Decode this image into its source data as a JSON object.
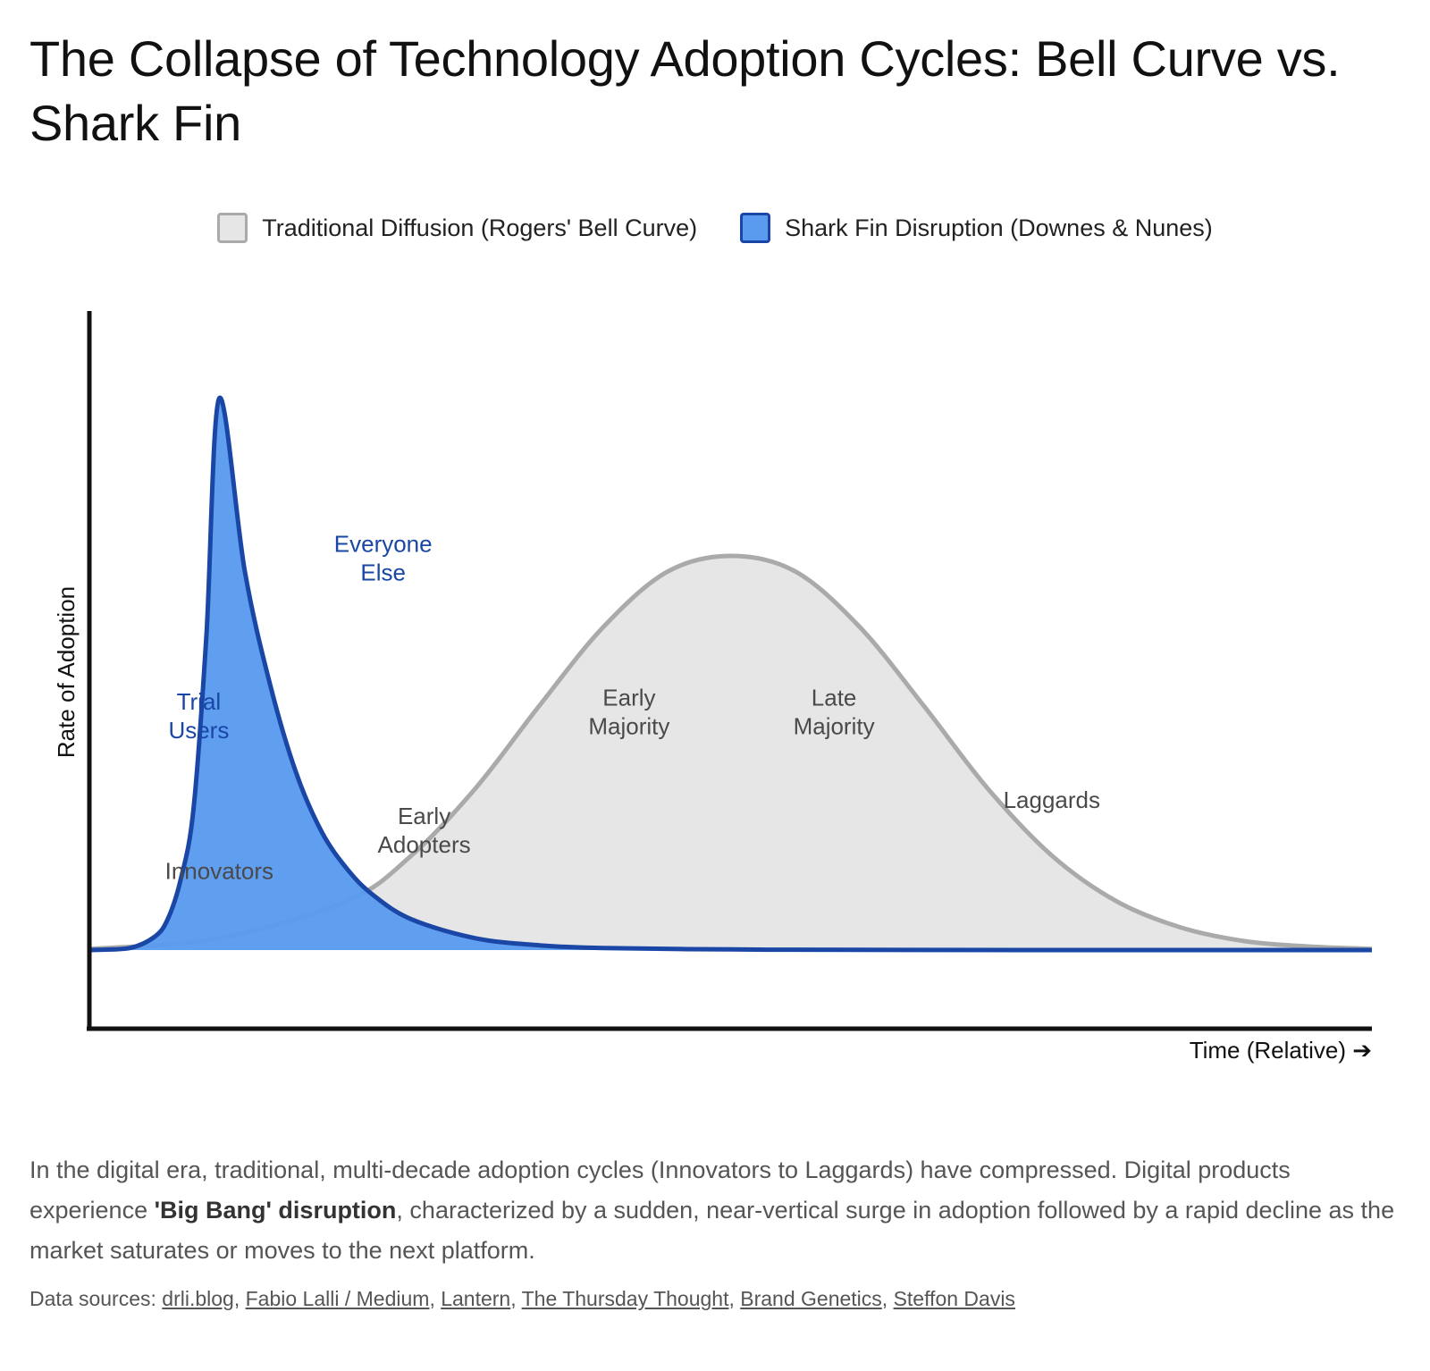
{
  "title": "The Collapse of Technology Adoption Cycles: Bell Curve vs. Shark Fin",
  "legend": [
    {
      "label": "Traditional Diffusion (Rogers' Bell Curve)",
      "color": "#e6e6e6",
      "border": "#aaaaaa"
    },
    {
      "label": "Shark Fin Disruption (Downes & Nunes)",
      "color": "#5b9bef",
      "border": "#1a47a6"
    }
  ],
  "chart_data": {
    "type": "area",
    "xlabel": "Time (Relative) ➔",
    "ylabel": "Rate of Adoption",
    "xlim": [
      0,
      100
    ],
    "ylim": [
      0,
      100
    ],
    "grid": false,
    "legend_position": "top",
    "series": [
      {
        "name": "Traditional Diffusion (Rogers' Bell Curve)",
        "color": "#aaaaaa",
        "fill": "#e6e6e6",
        "x": [
          0,
          10,
          20,
          25,
          30,
          35,
          40,
          45,
          50,
          55,
          60,
          65,
          70,
          75,
          80,
          85,
          90,
          95,
          100
        ],
        "y": [
          0.3,
          3.0,
          12.5,
          24.0,
          41.0,
          62.0,
          82.0,
          96.0,
          100.0,
          96.0,
          82.0,
          62.0,
          41.0,
          24.0,
          12.5,
          5.8,
          2.3,
          0.9,
          0.3
        ]
      },
      {
        "name": "Shark Fin Disruption (Downes & Nunes)",
        "color": "#1a47a6",
        "fill": "#5b9bef",
        "x": [
          0,
          3,
          5,
          6,
          7,
          8,
          9,
          10,
          12,
          14,
          16,
          18,
          20,
          22,
          25,
          30,
          35,
          40,
          50,
          60,
          80,
          100
        ],
        "y": [
          0,
          0.5,
          3.5,
          8.0,
          18.0,
          36.0,
          80.0,
          140.0,
          96.0,
          67.0,
          45.0,
          30.0,
          20.5,
          14.0,
          7.8,
          3.0,
          1.2,
          0.5,
          0.15,
          0.05,
          0,
          0
        ]
      }
    ],
    "annotations": [
      {
        "text": [
          "Innovators"
        ],
        "x": 10,
        "y": 18,
        "series": "Traditional Diffusion (Rogers' Bell Curve)"
      },
      {
        "text": [
          "Early",
          "Adopters"
        ],
        "x": 26,
        "y": 32,
        "series": "Traditional Diffusion (Rogers' Bell Curve)"
      },
      {
        "text": [
          "Early",
          "Majority"
        ],
        "x": 42,
        "y": 62,
        "series": "Traditional Diffusion (Rogers' Bell Curve)"
      },
      {
        "text": [
          "Late",
          "Majority"
        ],
        "x": 58,
        "y": 62,
        "series": "Traditional Diffusion (Rogers' Bell Curve)"
      },
      {
        "text": [
          "Laggards"
        ],
        "x": 75,
        "y": 36,
        "series": "Traditional Diffusion (Rogers' Bell Curve)"
      },
      {
        "text": [
          "Trial",
          "Users"
        ],
        "x": 8.4,
        "y": 61,
        "series": "Shark Fin Disruption (Downes & Nunes)"
      },
      {
        "text": [
          "Everyone",
          "Else"
        ],
        "x": 22.8,
        "y": 101,
        "series": "Shark Fin Disruption (Downes & Nunes)"
      }
    ]
  },
  "description": {
    "part1": "In the digital era, traditional, multi-decade adoption cycles (Innovators to Laggards) have compressed. Digital products experience ",
    "bold": "'Big Bang' disruption",
    "part2": ", characterized by a sudden, near-vertical surge in adoption followed by a rapid decline as the market saturates or moves to the next platform."
  },
  "sources": {
    "prefix": "Data sources: ",
    "links": [
      "drli.blog",
      "Fabio Lalli / Medium",
      "Lantern",
      "The Thursday Thought",
      "Brand Genetics",
      "Steffon Davis"
    ]
  }
}
